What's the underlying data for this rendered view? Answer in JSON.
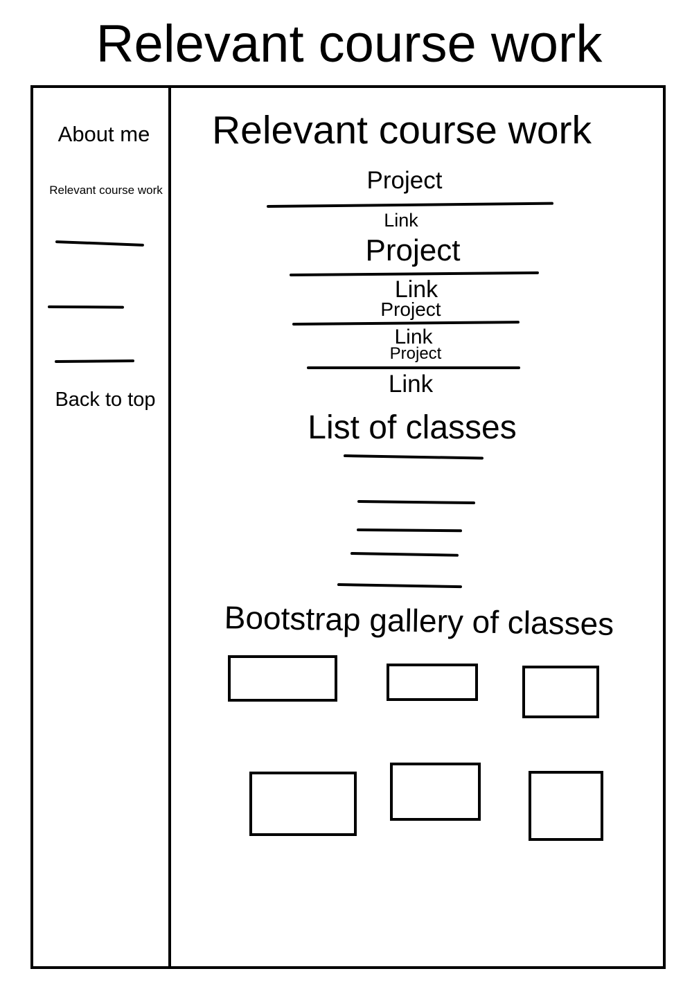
{
  "page": {
    "title": "Relevant course work"
  },
  "sidebar": {
    "about_me": "About me",
    "course_work": "Relevant course work",
    "back_to_top": "Back to top"
  },
  "main": {
    "heading": "Relevant course work",
    "projects": [
      {
        "title": "Project",
        "link": "Link"
      },
      {
        "title": "Project",
        "link": "Link"
      },
      {
        "title": "Project",
        "link": "Link"
      },
      {
        "title": "Project",
        "link": "Link"
      }
    ],
    "classes_heading": "List of classes",
    "gallery_heading": "Bootstrap gallery of classes"
  }
}
